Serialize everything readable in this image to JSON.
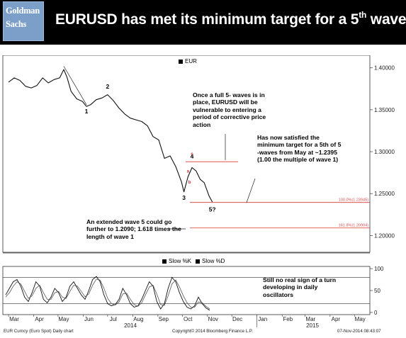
{
  "brand": {
    "logo_line1": "Goldman",
    "logo_line2": "Sachs"
  },
  "title": {
    "main": "EURUSD has met its minimum target for a 5",
    "sup": "th",
    "tail": " wave"
  },
  "notes": {
    "top": "Once a full 5- waves is in place, EURUSD will be vulnerable to entering a period of corrective price action",
    "right": "Has now satisfied the minimum target for a 5th of 5 -waves from May at ~1.2395 (1.00 the multiple of wave 1)",
    "extended": "An extended wave 5 could go further to 1.2090; 1.618 times the length of wave 1",
    "oscillator": "Still no real sign of a turn developing in daily oscillators"
  },
  "legend": {
    "price": "EUR",
    "slow_k": "Slow %K",
    "slow_d": "Slow %D"
  },
  "footer": {
    "left": "EUR Curncy (Euro Spot) Daily chart",
    "middle": "Copyright© 2014 Bloomberg Finance L.P.",
    "right": "07-Nov-2014 08:43:07"
  },
  "chart_data": [
    {
      "type": "line",
      "legend": [
        "EUR"
      ],
      "ylim": [
        1.18,
        1.415
      ],
      "yticks": [
        "1.40000",
        "1.35000",
        "1.30000",
        "1.25000",
        "1.20000"
      ],
      "ytick_values": [
        1.4,
        1.35,
        1.3,
        1.25,
        1.2
      ],
      "xticks": [
        "Mar",
        "Apr",
        "May",
        "Jun",
        "Jul",
        "Aug",
        "Sep",
        "Oct",
        "Nov",
        "Dec",
        "Jan",
        "Feb",
        "Mar",
        "Apr",
        "May"
      ],
      "year_labels": [
        "2014",
        "2015"
      ],
      "series": [
        {
          "name": "EUR",
          "x": [
            "2014-03-01",
            "2014-03-08",
            "2014-03-15",
            "2014-03-22",
            "2014-03-29",
            "2014-04-05",
            "2014-04-12",
            "2014-04-19",
            "2014-04-26",
            "2014-05-03",
            "2014-05-08",
            "2014-05-12",
            "2014-05-17",
            "2014-05-24",
            "2014-05-31",
            "2014-06-05",
            "2014-06-10",
            "2014-06-17",
            "2014-06-24",
            "2014-07-01",
            "2014-07-08",
            "2014-07-15",
            "2014-07-22",
            "2014-07-29",
            "2014-08-05",
            "2014-08-12",
            "2014-08-19",
            "2014-08-26",
            "2014-09-02",
            "2014-09-09",
            "2014-09-16",
            "2014-09-23",
            "2014-09-30",
            "2014-10-03",
            "2014-10-08",
            "2014-10-13",
            "2014-10-18",
            "2014-10-23",
            "2014-10-28",
            "2014-11-03",
            "2014-11-07"
          ],
          "y": [
            1.383,
            1.388,
            1.385,
            1.378,
            1.376,
            1.379,
            1.388,
            1.382,
            1.386,
            1.388,
            1.398,
            1.389,
            1.372,
            1.363,
            1.36,
            1.354,
            1.356,
            1.362,
            1.364,
            1.368,
            1.361,
            1.352,
            1.345,
            1.34,
            1.338,
            1.336,
            1.331,
            1.318,
            1.314,
            1.292,
            1.295,
            1.282,
            1.264,
            1.252,
            1.27,
            1.281,
            1.277,
            1.267,
            1.263,
            1.247,
            1.24
          ]
        }
      ],
      "annotations": [
        {
          "text": "1",
          "x": "2014-06-05",
          "y": 1.355
        },
        {
          "text": "2",
          "x": "2014-07-01",
          "y": 1.37
        },
        {
          "text": "3",
          "x": "2014-10-03",
          "y": 1.252
        },
        {
          "text": "4",
          "x": "2014-10-13",
          "y": 1.287
        },
        {
          "text": "5?",
          "x": "2014-11-07",
          "y": 1.238
        },
        {
          "text": "a",
          "x": "2014-10-08",
          "y": 1.275
        },
        {
          "text": "b",
          "x": "2014-10-10",
          "y": 1.262
        },
        {
          "text": "c",
          "x": "2014-10-13",
          "y": 1.296
        }
      ],
      "hlines": [
        {
          "value": 1.2395,
          "label": "100.0%(1.23945)",
          "color": "#e05050"
        },
        {
          "value": 1.209,
          "label": "161.8%(1.20904)",
          "color": "#e05050"
        }
      ]
    },
    {
      "type": "line",
      "legend": [
        "Slow %K",
        "Slow %D"
      ],
      "ylim": [
        -5,
        105
      ],
      "yticks": [
        "100",
        "50",
        "0"
      ],
      "ytick_values": [
        100,
        50,
        0
      ],
      "reference_lines": [
        80,
        20
      ],
      "series": [
        {
          "name": "Slow %K",
          "values": [
            40,
            55,
            70,
            75,
            60,
            35,
            25,
            45,
            70,
            60,
            30,
            22,
            35,
            55,
            45,
            25,
            35,
            60,
            70,
            55,
            40,
            30,
            50,
            75,
            82,
            70,
            40,
            20,
            15,
            18,
            30,
            55,
            40,
            20,
            12,
            15,
            30,
            50,
            70,
            60,
            25,
            8,
            20,
            55,
            80,
            70,
            45,
            25,
            12,
            8,
            15,
            35,
            20,
            10,
            5
          ]
        },
        {
          "name": "Slow %D",
          "values": [
            35,
            45,
            60,
            70,
            65,
            48,
            32,
            38,
            55,
            62,
            45,
            30,
            30,
            45,
            48,
            35,
            32,
            48,
            62,
            60,
            48,
            36,
            42,
            62,
            76,
            74,
            55,
            32,
            20,
            17,
            24,
            42,
            44,
            30,
            18,
            14,
            22,
            40,
            58,
            62,
            42,
            18,
            16,
            38,
            65,
            74,
            58,
            38,
            22,
            12,
            12,
            24,
            22,
            14,
            8
          ]
        }
      ]
    }
  ]
}
